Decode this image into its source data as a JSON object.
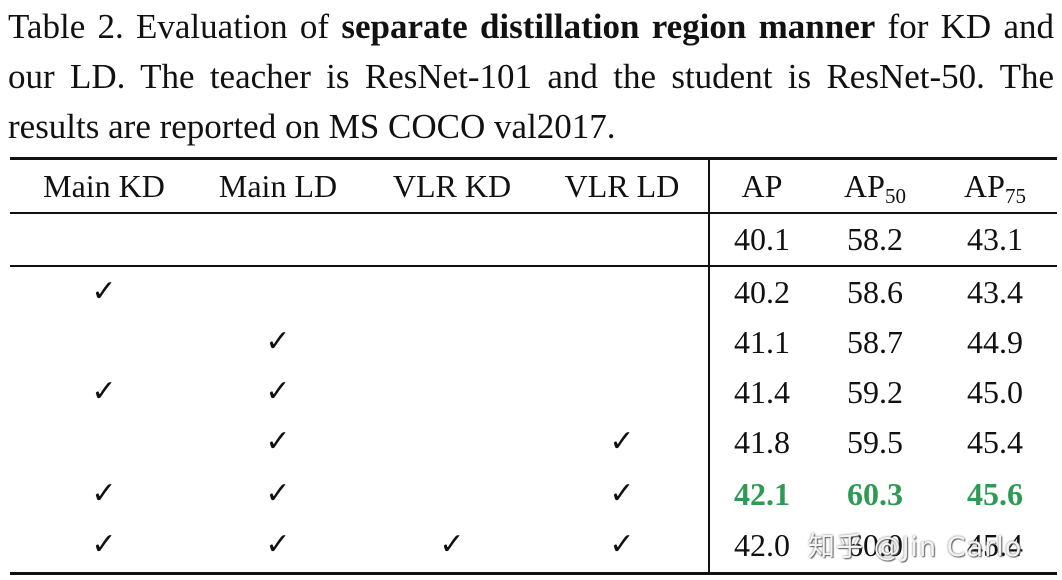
{
  "caption": {
    "prefix": "Table 2.  Evaluation of ",
    "bold": "separate distillation region manner",
    "suffix": " for KD and our LD. The teacher is ResNet-101 and the student is ResNet-50. The results are reported on MS COCO val2017."
  },
  "table": {
    "headers": {
      "main_kd": "Main KD",
      "main_ld": "Main LD",
      "vlr_kd": "VLR KD",
      "vlr_ld": "VLR LD",
      "ap": "AP",
      "ap50_base": "AP",
      "ap50_sub": "50",
      "ap75_base": "AP",
      "ap75_sub": "75"
    },
    "baseline": {
      "ap": "40.1",
      "ap50": "58.2",
      "ap75": "43.1"
    },
    "check_symbol": "✓",
    "rows": [
      {
        "main_kd": "✓",
        "main_ld": "",
        "vlr_kd": "",
        "vlr_ld": "",
        "ap": "40.2",
        "ap50": "58.6",
        "ap75": "43.4"
      },
      {
        "main_kd": "",
        "main_ld": "✓",
        "vlr_kd": "",
        "vlr_ld": "",
        "ap": "41.1",
        "ap50": "58.7",
        "ap75": "44.9"
      },
      {
        "main_kd": "✓",
        "main_ld": "✓",
        "vlr_kd": "",
        "vlr_ld": "",
        "ap": "41.4",
        "ap50": "59.2",
        "ap75": "45.0"
      },
      {
        "main_kd": "",
        "main_ld": "✓",
        "vlr_kd": "",
        "vlr_ld": "✓",
        "ap": "41.8",
        "ap50": "59.5",
        "ap75": "45.4"
      },
      {
        "main_kd": "✓",
        "main_ld": "✓",
        "vlr_kd": "",
        "vlr_ld": "✓",
        "ap": "42.1",
        "ap50": "60.3",
        "ap75": "45.6"
      },
      {
        "main_kd": "✓",
        "main_ld": "✓",
        "vlr_kd": "✓",
        "vlr_ld": "✓",
        "ap": "42.0",
        "ap50": "60.0",
        "ap75": "45.4"
      }
    ],
    "highlight_color": "#2e9a53"
  },
  "watermark": "知乎 @Jin Carlo"
}
